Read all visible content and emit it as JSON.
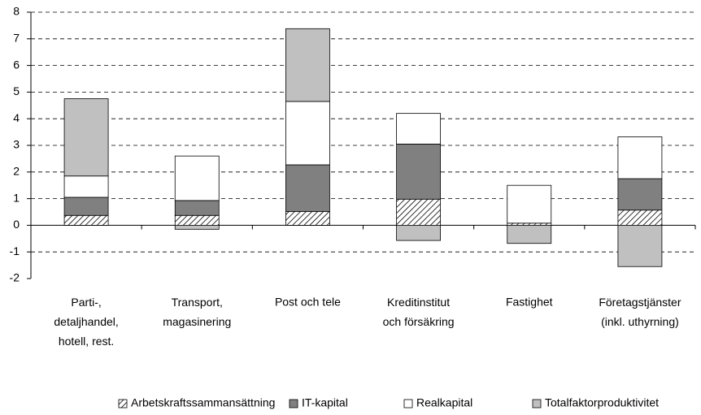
{
  "chart_data": {
    "type": "stacked_bar",
    "categories": [
      "Parti-,\ndetaljhandel,\nhotell, rest.",
      "Transport,\nmagasinering",
      "Post och tele",
      "Kreditinstitut\noch försäkring",
      "Fastighet",
      "Företagstjänster\n(inkl. uthyrning)"
    ],
    "series": [
      {
        "name": "Arbetskraftssammansättning",
        "color": "#ffffff",
        "pattern": "hatch",
        "values": [
          0.37,
          0.37,
          0.52,
          0.98,
          0.08,
          0.57
        ]
      },
      {
        "name": "IT-kapital",
        "color": "#808080",
        "values": [
          0.68,
          0.56,
          1.75,
          2.07,
          0,
          1.18
        ]
      },
      {
        "name": "Realkapital",
        "color": "#ffffff",
        "values": [
          0.8,
          1.67,
          2.38,
          1.15,
          1.42,
          1.57
        ]
      },
      {
        "name": "Totalfaktorproduktivitet",
        "color": "#c0c0c0",
        "values": [
          2.9,
          -0.15,
          2.73,
          -0.57,
          -0.68,
          -1.55
        ]
      }
    ],
    "ylim": [
      -2,
      8
    ],
    "yticks": [
      -2,
      -1,
      0,
      1,
      2,
      3,
      4,
      5,
      6,
      7,
      8
    ],
    "grid": true,
    "legend": "bottom"
  }
}
